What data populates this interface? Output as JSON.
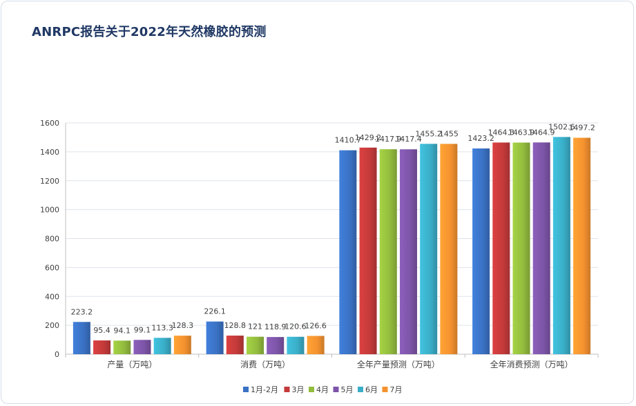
{
  "title": "ANRPC报告关于2022年天然橡胶的预测",
  "chart_data": {
    "type": "bar",
    "title": "ANRPC报告关于2022年天然橡胶的预测",
    "categories": [
      "产量（万吨）",
      "消费（万吨）",
      "全年产量预测（万吨）",
      "全年消费预测（万吨）"
    ],
    "series": [
      {
        "name": "1月-2月",
        "color": "#3a72c4",
        "values": [
          223.2,
          226.1,
          1410.7,
          1423.2
        ]
      },
      {
        "name": "3月",
        "color": "#c43a3a",
        "values": [
          95.4,
          128.8,
          1429.2,
          1464.3
        ]
      },
      {
        "name": "4月",
        "color": "#93bc3e",
        "values": [
          94.1,
          121,
          1417.9,
          1463.9
        ]
      },
      {
        "name": "5月",
        "color": "#7d55a8",
        "values": [
          99.1,
          118.9,
          1417.4,
          1464.9
        ]
      },
      {
        "name": "6月",
        "color": "#3aaec8",
        "values": [
          113.3,
          120.6,
          1455.2,
          1502.6
        ]
      },
      {
        "name": "7月",
        "color": "#f5922f",
        "values": [
          128.3,
          126.6,
          1455,
          1497.2
        ]
      }
    ],
    "yticks": [
      0,
      200,
      400,
      600,
      800,
      1000,
      1200,
      1400,
      1600
    ],
    "ylim": [
      0,
      1600
    ],
    "grid": true,
    "legend_position": "bottom"
  }
}
